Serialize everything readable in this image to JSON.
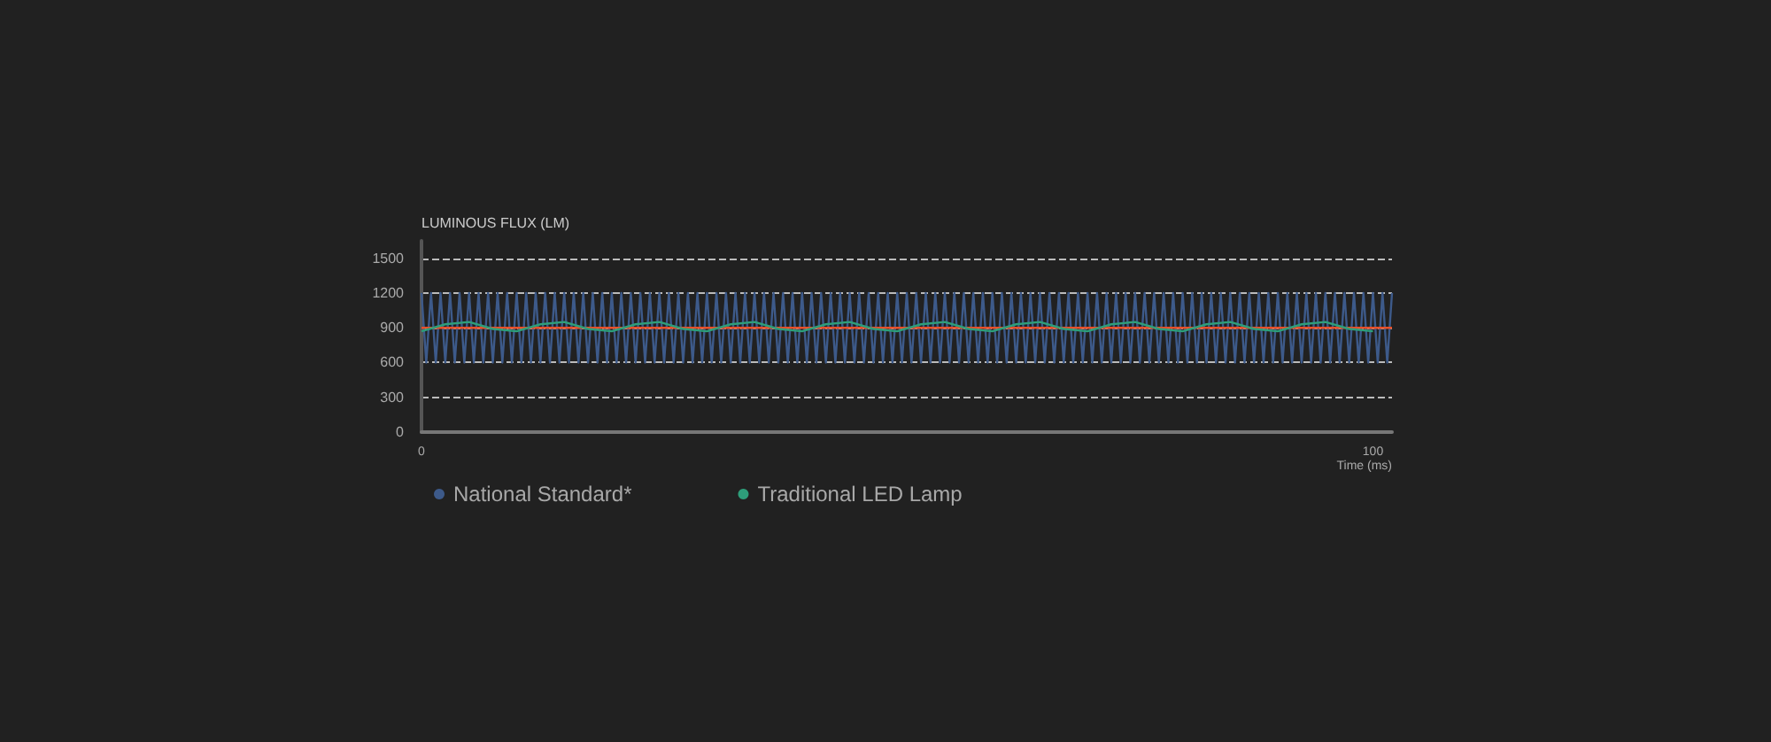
{
  "chart_data": {
    "type": "line",
    "ylabel": "LUMINOUS FLUX (LM)",
    "xlabel": "Time (ms)",
    "xlim": [
      0,
      102
    ],
    "xticks": [
      0,
      100
    ],
    "ylim": [
      0,
      1650
    ],
    "yticks": [
      0,
      300,
      600,
      900,
      1200,
      1500
    ],
    "grid": "y",
    "legend": "bottom left",
    "marker": "none",
    "line_style": "solid",
    "series": [
      {
        "name": "National Standard*",
        "color": "#3d5a8a",
        "x": [
          0,
          0.5,
          1,
          1.5,
          2,
          2.5,
          3,
          3.5,
          4,
          4.5,
          5,
          5.5,
          6,
          6.5,
          7,
          7.5,
          8,
          8.5,
          9,
          9.5,
          10,
          10.5,
          11,
          11.5,
          12,
          12.5,
          13,
          13.5,
          14,
          14.5,
          15,
          15.5,
          16,
          16.5,
          17,
          17.5,
          18,
          18.5,
          19,
          19.5,
          20,
          20.5,
          21,
          21.5,
          22,
          22.5,
          23,
          23.5,
          24,
          24.5,
          25,
          25.5,
          26,
          26.5,
          27,
          27.5,
          28,
          28.5,
          29,
          29.5,
          30,
          30.5,
          31,
          31.5,
          32,
          32.5,
          33,
          33.5,
          34,
          34.5,
          35,
          35.5,
          36,
          36.5,
          37,
          37.5,
          38,
          38.5,
          39,
          39.5,
          40,
          40.5,
          41,
          41.5,
          42,
          42.5,
          43,
          43.5,
          44,
          44.5,
          45,
          45.5,
          46,
          46.5,
          47,
          47.5,
          48,
          48.5,
          49,
          49.5,
          50,
          50.5,
          51,
          51.5,
          52,
          52.5,
          53,
          53.5,
          54,
          54.5,
          55,
          55.5,
          56,
          56.5,
          57,
          57.5,
          58,
          58.5,
          59,
          59.5,
          60,
          60.5,
          61,
          61.5,
          62,
          62.5,
          63,
          63.5,
          64,
          64.5,
          65,
          65.5,
          66,
          66.5,
          67,
          67.5,
          68,
          68.5,
          69,
          69.5,
          70,
          70.5,
          71,
          71.5,
          72,
          72.5,
          73,
          73.5,
          74,
          74.5,
          75,
          75.5,
          76,
          76.5,
          77,
          77.5,
          78,
          78.5,
          79,
          79.5,
          80,
          80.5,
          81,
          81.5,
          82,
          82.5,
          83,
          83.5,
          84,
          84.5,
          85,
          85.5,
          86,
          86.5,
          87,
          87.5,
          88,
          88.5,
          89,
          89.5,
          90,
          90.5,
          91,
          91.5,
          92,
          92.5,
          93,
          93.5,
          94,
          94.5,
          95,
          95.5,
          96,
          96.5,
          97,
          97.5,
          98,
          98.5,
          99,
          99.5,
          100,
          100.5,
          101,
          101.5,
          102
        ],
        "values": [
          1200,
          600,
          1200,
          600,
          1200,
          600,
          1200,
          600,
          1200,
          600,
          1200,
          600,
          1200,
          600,
          1200,
          600,
          1200,
          600,
          1200,
          600,
          1200,
          600,
          1200,
          600,
          1200,
          600,
          1200,
          600,
          1200,
          600,
          1200,
          600,
          1200,
          600,
          1200,
          600,
          1200,
          600,
          1200,
          600,
          1200,
          600,
          1200,
          600,
          1200,
          600,
          1200,
          600,
          1200,
          600,
          1200,
          600,
          1200,
          600,
          1200,
          600,
          1200,
          600,
          1200,
          600,
          1200,
          600,
          1200,
          600,
          1200,
          600,
          1200,
          600,
          1200,
          600,
          1200,
          600,
          1200,
          600,
          1200,
          600,
          1200,
          600,
          1200,
          600,
          1200,
          600,
          1200,
          600,
          1200,
          600,
          1200,
          600,
          1200,
          600,
          1200,
          600,
          1200,
          600,
          1200,
          600,
          1200,
          600,
          1200,
          600,
          1200,
          600,
          1200,
          600,
          1200,
          600,
          1200,
          600,
          1200,
          600,
          1200,
          600,
          1200,
          600,
          1200,
          600,
          1200,
          600,
          1200,
          600,
          1200,
          600,
          1200,
          600,
          1200,
          600,
          1200,
          600,
          1200,
          600,
          1200,
          600,
          1200,
          600,
          1200,
          600,
          1200,
          600,
          1200,
          600,
          1200,
          600,
          1200,
          600,
          1200,
          600,
          1200,
          600,
          1200,
          600,
          1200,
          600,
          1200,
          600,
          1200,
          600,
          1200,
          600,
          1200,
          600,
          1200,
          600,
          1200,
          600,
          1200,
          600,
          1200,
          600,
          1200,
          600,
          1200,
          600,
          1200,
          600,
          1200,
          600,
          1200,
          600,
          1200,
          600,
          1200,
          600,
          1200,
          600,
          1200,
          600,
          1200,
          600,
          1200,
          600,
          1200,
          600,
          1200,
          600,
          1200,
          600,
          1200,
          600,
          1200,
          600,
          1200,
          600,
          1200,
          600,
          1200
        ]
      },
      {
        "color": "#e8502a",
        "x": [
          0,
          102
        ],
        "values": [
          900,
          900
        ]
      },
      {
        "name": "Traditional LED Lamp",
        "color": "#2e9e7a",
        "x": [
          0,
          2.5,
          5,
          7.5,
          10,
          12.5,
          15,
          17.5,
          20,
          22.5,
          25,
          27.5,
          30,
          32.5,
          35,
          37.5,
          40,
          42.5,
          45,
          47.5,
          50,
          52.5,
          55,
          57.5,
          60,
          62.5,
          65,
          67.5,
          70,
          72.5,
          75,
          77.5,
          80,
          82.5,
          85,
          87.5,
          90,
          92.5,
          95,
          97.5,
          100
        ],
        "values": [
          870,
          930,
          950,
          890,
          870,
          930,
          950,
          890,
          870,
          930,
          950,
          890,
          870,
          930,
          950,
          890,
          870,
          930,
          950,
          890,
          870,
          930,
          950,
          890,
          870,
          930,
          950,
          890,
          870,
          930,
          950,
          890,
          870,
          930,
          950,
          890,
          870,
          930,
          950,
          890,
          870
        ]
      }
    ]
  }
}
